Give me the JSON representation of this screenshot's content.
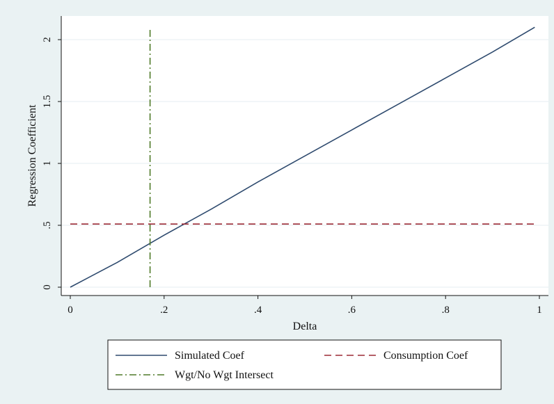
{
  "chart_data": {
    "type": "line",
    "xlabel": "Delta",
    "ylabel": "Regression Coefficient",
    "xlim": [
      0,
      1
    ],
    "ylim": [
      0,
      2.1
    ],
    "x_ticks": [
      {
        "value": 0,
        "label": "0"
      },
      {
        "value": 0.2,
        "label": ".2"
      },
      {
        "value": 0.4,
        "label": ".4"
      },
      {
        "value": 0.6,
        "label": ".6"
      },
      {
        "value": 0.8,
        "label": ".8"
      },
      {
        "value": 1,
        "label": "1"
      }
    ],
    "y_ticks": [
      {
        "value": 0,
        "label": "0"
      },
      {
        "value": 0.5,
        "label": ".5"
      },
      {
        "value": 1,
        "label": "1"
      },
      {
        "value": 1.5,
        "label": "1.5"
      },
      {
        "value": 2,
        "label": "2"
      }
    ],
    "grid": "horizontal",
    "legend_position": "bottom",
    "series": [
      {
        "name": "Simulated Coef",
        "style": "solid",
        "color": "#2e4a6e",
        "x": [
          0,
          0.1,
          0.2,
          0.3,
          0.4,
          0.5,
          0.6,
          0.7,
          0.8,
          0.9,
          0.99
        ],
        "y": [
          0,
          0.2,
          0.42,
          0.63,
          0.85,
          1.06,
          1.27,
          1.48,
          1.69,
          1.9,
          2.1
        ]
      },
      {
        "name": "Consumption Coef",
        "style": "dashed",
        "color": "#9b2a35",
        "x": [
          0,
          0.99
        ],
        "y": [
          0.51,
          0.51
        ]
      },
      {
        "name": "Wgt/No Wgt Intersect",
        "style": "dashdot",
        "color": "#4f7a28",
        "x": [
          0.17,
          0.17
        ],
        "y": [
          0,
          2.1
        ]
      }
    ]
  }
}
